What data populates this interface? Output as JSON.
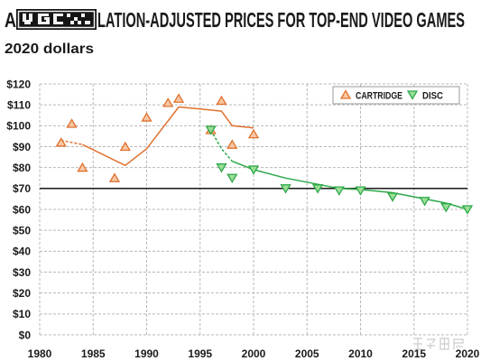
{
  "chart_data": {
    "type": "scatter",
    "title": {
      "start": "A",
      "end": "LATION-ADJUSTED PRICES FOR TOP-END VIDEO GAMES",
      "logo_icon": "pixel-logo-icon"
    },
    "subtitle": "2020 dollars",
    "xlim": [
      1980,
      2020
    ],
    "ylim": [
      0,
      120
    ],
    "x_ticks": [
      1980,
      1985,
      1990,
      1995,
      2000,
      2005,
      2010,
      2015,
      2020
    ],
    "x_tick_labels": [
      "1980",
      "1985",
      "1990",
      "1995",
      "2000",
      "2005",
      "2010",
      "2015",
      "2020"
    ],
    "y_ticks": [
      0,
      10,
      20,
      30,
      40,
      50,
      60,
      70,
      80,
      90,
      100,
      110,
      120
    ],
    "y_tick_labels": [
      "$0",
      "$10",
      "$20",
      "$30",
      "$40",
      "$50",
      "$60",
      "$70",
      "$80",
      "$90",
      "$100",
      "$110",
      "$120"
    ],
    "grid": true,
    "reference_line": {
      "y": 70
    },
    "legend_position": "top-right",
    "colors": {
      "grid": "#b8b8b8",
      "reference_line": "#000000",
      "legend_border": "#9a9a9a"
    },
    "series": [
      {
        "name": "CARTRIDGE",
        "marker": "triangle-up",
        "stroke": "#e0702e",
        "fill": "#f7c7a3",
        "points": [
          [
            1982,
            92
          ],
          [
            1983,
            101
          ],
          [
            1984,
            80
          ],
          [
            1987,
            75
          ],
          [
            1988,
            90
          ],
          [
            1990,
            104
          ],
          [
            1992,
            111
          ],
          [
            1993,
            113
          ],
          [
            1996,
            98
          ],
          [
            1997,
            112
          ],
          [
            1998,
            91
          ],
          [
            2000,
            96
          ]
        ],
        "trend": {
          "dashed": [
            [
              1982,
              93
            ],
            [
              1984,
              91
            ]
          ],
          "solid": [
            [
              1984,
              91
            ],
            [
              1988,
              81
            ],
            [
              1990,
              89
            ],
            [
              1993,
              109
            ],
            [
              1995,
              108
            ],
            [
              1997,
              107
            ],
            [
              1998,
              100
            ],
            [
              2000,
              99
            ]
          ]
        }
      },
      {
        "name": "DISC",
        "marker": "triangle-down",
        "stroke": "#2ea84a",
        "fill": "#9bdf97",
        "points": [
          [
            1996,
            98
          ],
          [
            1997,
            80
          ],
          [
            1998,
            75
          ],
          [
            2000,
            79
          ],
          [
            2003,
            70
          ],
          [
            2006,
            70
          ],
          [
            2008,
            69
          ],
          [
            2010,
            69
          ],
          [
            2013,
            66
          ],
          [
            2016,
            64
          ],
          [
            2018,
            61
          ],
          [
            2020,
            60
          ]
        ],
        "trend": {
          "dashed": [
            [
              1996,
              98
            ],
            [
              1997,
              89
            ],
            [
              1998,
              83
            ]
          ],
          "solid": [
            [
              1998,
              83
            ],
            [
              2000,
              79
            ],
            [
              2003,
              75
            ],
            [
              2006,
              72
            ],
            [
              2008,
              70
            ],
            [
              2010,
              69.5
            ],
            [
              2013,
              68
            ],
            [
              2016,
              65
            ],
            [
              2018,
              63
            ],
            [
              2020,
              60
            ]
          ]
        }
      }
    ]
  },
  "watermark": {
    "text": "知乎用户",
    "icon": "zhihu-watermark-icon"
  }
}
